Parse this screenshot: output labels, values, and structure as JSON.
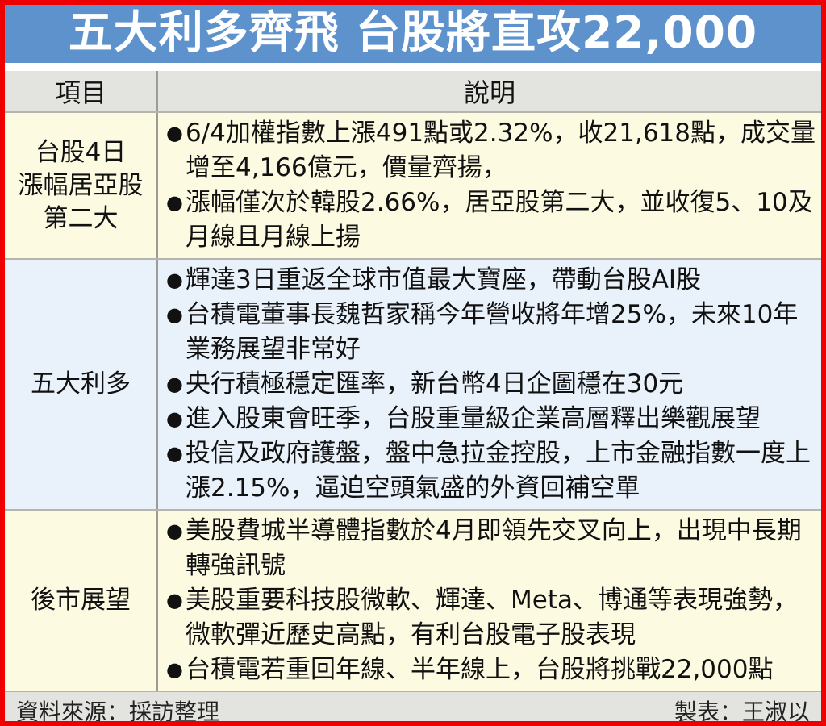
{
  "title": "五大利多齊飛 台股將直攻22,000",
  "colors": {
    "outer_border": "#ee0000",
    "title_bg": "#5e92cc",
    "title_text": "#ffffff",
    "header_bg": "#e3e3df",
    "row_yellow_bg": "#fdfae2",
    "row_blue_bg": "#e9f1fa",
    "divider": "#9c9c96"
  },
  "table": {
    "headers": {
      "item": "項目",
      "description": "說明"
    },
    "rows": [
      {
        "label": "台股4日\n漲幅居亞股\n第二大",
        "bullets": [
          "6/4加權指數上漲491點或2.32%，收21,618點，成交量增至4,166億元，價量齊揚，",
          "漲幅僅次於韓股2.66%，居亞股第二大，並收復5、10及月線且月線上揚"
        ]
      },
      {
        "label": "五大利多",
        "bullets": [
          "輝達3日重返全球市值最大寶座，帶動台股AI股",
          "台積電董事長魏哲家稱今年營收將年增25%，未來10年業務展望非常好",
          "央行積極穩定匯率，新台幣4日企圖穩在30元",
          "進入股東會旺季，台股重量級企業高層釋出樂觀展望",
          "投信及政府護盤，盤中急拉金控股，上市金融指數一度上漲2.15%，逼迫空頭氣盛的外資回補空單"
        ]
      },
      {
        "label": "後市展望",
        "bullets": [
          "美股費城半導體指數於4月即領先交叉向上，出現中長期轉強訊號",
          "美股重要科技股微軟、輝達、Meta、博通等表現強勢，微軟彈近歷史高點，有利台股電子股表現",
          "台積電若重回年線、半年線上，台股將挑戰22,000點"
        ]
      }
    ]
  },
  "footer": {
    "source": "資料來源：採訪整理",
    "credit": "製表：王淑以"
  }
}
